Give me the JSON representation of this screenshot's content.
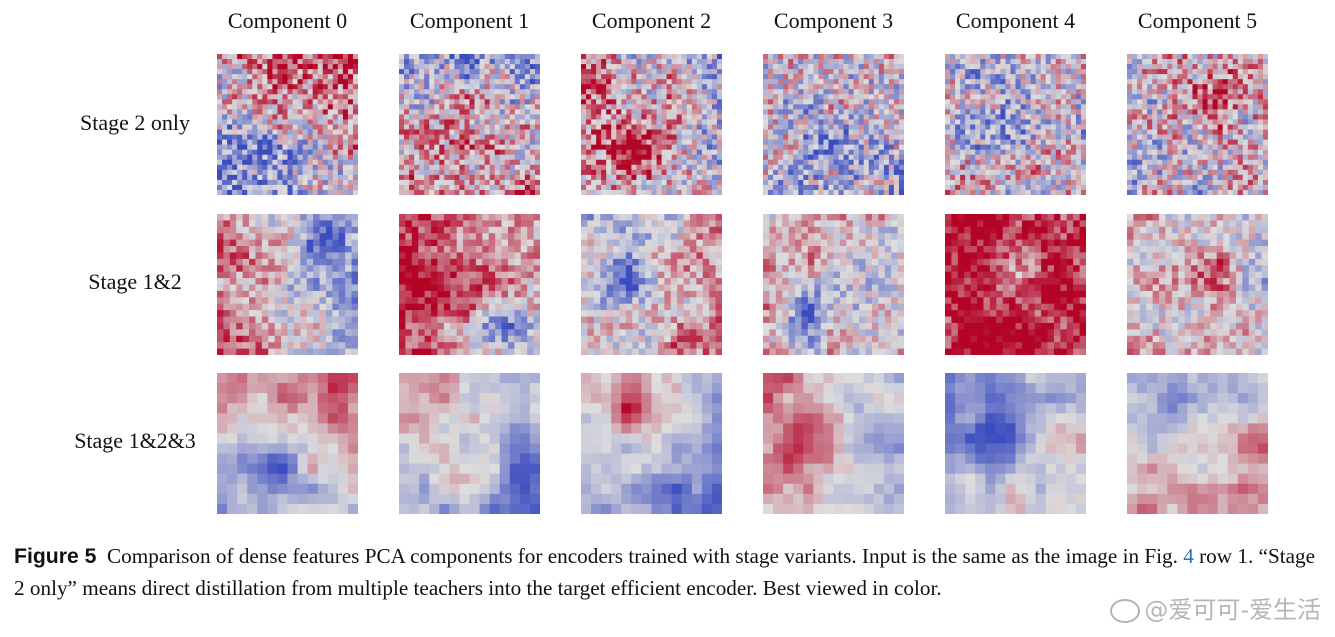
{
  "figure": {
    "columns": [
      "Component 0",
      "Component 1",
      "Component 2",
      "Component 3",
      "Component 4",
      "Component 5"
    ],
    "rows": [
      {
        "label": "Stage 2 only"
      },
      {
        "label": "Stage 1&2"
      },
      {
        "label": "Stage 1&2&3"
      }
    ],
    "colormap": {
      "low": "#3b4cc0",
      "mid": "#dddddd",
      "high": "#b40426"
    }
  },
  "caption": {
    "label": "Figure 5",
    "text_before_ref": "Comparison of dense features PCA components for encoders trained with stage variants. Input is the same as the image in Fig.",
    "ref": "4",
    "text_after_ref": "row 1. “Stage 2 only” means direct distillation from multiple teachers into the target efficient encoder. Best viewed in color."
  },
  "watermark": {
    "icon": "weibo-icon",
    "text": "@爱可可-爱生活"
  }
}
